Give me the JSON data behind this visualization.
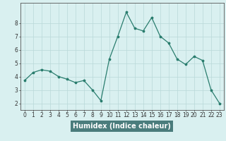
{
  "x": [
    0,
    1,
    2,
    3,
    4,
    5,
    6,
    7,
    8,
    9,
    10,
    11,
    12,
    13,
    14,
    15,
    16,
    17,
    18,
    19,
    20,
    21,
    22,
    23
  ],
  "y": [
    3.7,
    4.3,
    4.5,
    4.4,
    4.0,
    3.8,
    3.55,
    3.7,
    3.0,
    2.2,
    5.3,
    7.0,
    8.8,
    7.6,
    7.4,
    8.4,
    7.0,
    6.5,
    5.3,
    4.9,
    5.5,
    5.2,
    3.0,
    2.0
  ],
  "line_color": "#2a7d6e",
  "marker": "*",
  "marker_size": 2.5,
  "bg_color": "#d9f0f0",
  "grid_color": "#b8d8d8",
  "xlabel": "Humidex (Indice chaleur)",
  "xlabel_bg": "#4a7c7c",
  "xlabel_color": "#ffffff",
  "ylim": [
    1.5,
    9.5
  ],
  "xlim": [
    -0.5,
    23.5
  ],
  "yticks": [
    2,
    3,
    4,
    5,
    6,
    7,
    8
  ],
  "xticks": [
    0,
    1,
    2,
    3,
    4,
    5,
    6,
    7,
    8,
    9,
    10,
    11,
    12,
    13,
    14,
    15,
    16,
    17,
    18,
    19,
    20,
    21,
    22,
    23
  ],
  "tick_fontsize": 5.5,
  "xlabel_fontsize": 7
}
